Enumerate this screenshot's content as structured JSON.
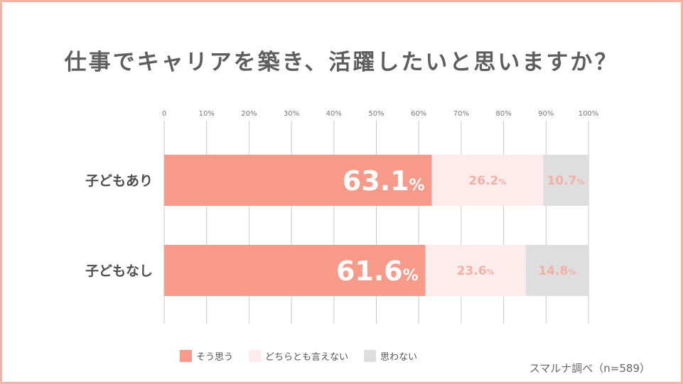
{
  "title": "仕事でキャリアを築き、活躍したいと思いますか？",
  "source": "スマルナ調べ（n=589）",
  "colors": {
    "series_1": "#f79a8a",
    "series_2": "#fdeceb",
    "series_3": "#dedede",
    "border": "#f4b3a5",
    "grid": "#c9c9c9",
    "label_light": "#f2b0a2"
  },
  "legend": [
    {
      "label": "そう思う"
    },
    {
      "label": "どちらとも言えない"
    },
    {
      "label": "思わない"
    }
  ],
  "chart_data": {
    "type": "bar",
    "orientation": "horizontal",
    "stacked": true,
    "categories": [
      "子どもあり",
      "子どもなし"
    ],
    "series": [
      {
        "name": "そう思う",
        "values": [
          63.1,
          61.6
        ],
        "labels": [
          "63.1",
          "61.6"
        ]
      },
      {
        "name": "どちらとも言えない",
        "values": [
          26.2,
          23.6
        ],
        "labels": [
          "26.2",
          "23.6"
        ]
      },
      {
        "name": "思わない",
        "values": [
          10.7,
          14.8
        ],
        "labels": [
          "10.7",
          "14.8"
        ]
      }
    ],
    "value_unit": "%",
    "xlim": [
      0,
      100
    ],
    "x_ticks": [
      "0",
      "10%",
      "20%",
      "30%",
      "40%",
      "50%",
      "60%",
      "70%",
      "80%",
      "90%",
      "100%"
    ],
    "grid": true,
    "legend_position": "bottom"
  }
}
